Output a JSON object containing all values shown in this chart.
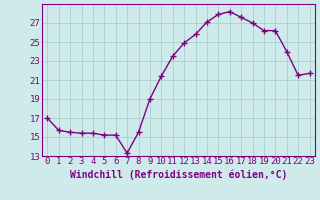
{
  "x": [
    0,
    1,
    2,
    3,
    4,
    5,
    6,
    7,
    8,
    9,
    10,
    11,
    12,
    13,
    14,
    15,
    16,
    17,
    18,
    19,
    20,
    21,
    22,
    23
  ],
  "y": [
    17.0,
    15.7,
    15.5,
    15.4,
    15.4,
    15.2,
    15.2,
    13.3,
    15.5,
    19.0,
    21.4,
    23.5,
    24.9,
    25.8,
    27.1,
    27.9,
    28.2,
    27.6,
    27.0,
    26.2,
    26.2,
    24.0,
    21.5,
    21.7
  ],
  "bg_color": "#ceeaea",
  "line_color": "#800080",
  "marker_color": "#800080",
  "grid_color": "#aacece",
  "xlabel": "Windchill (Refroidissement éolien,°C)",
  "ylim": [
    13,
    29
  ],
  "xlim": [
    -0.5,
    23.5
  ],
  "yticks": [
    13,
    15,
    17,
    19,
    21,
    23,
    25,
    27
  ],
  "xticks": [
    0,
    1,
    2,
    3,
    4,
    5,
    6,
    7,
    8,
    9,
    10,
    11,
    12,
    13,
    14,
    15,
    16,
    17,
    18,
    19,
    20,
    21,
    22,
    23
  ],
  "tick_fontsize": 6.5,
  "xlabel_fontsize": 7,
  "line_width": 1.0,
  "marker_size": 4
}
